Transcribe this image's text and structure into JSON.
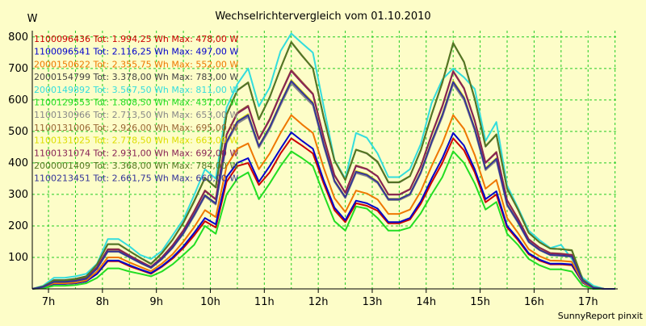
{
  "chart_data": {
    "type": "line",
    "title": "Wechselrichtervergleich vom 01.10.2010",
    "ylabel": "W",
    "xlabel": "",
    "footer": "SunnyReport pinxit",
    "ylim": [
      0,
      820
    ],
    "xlim": [
      6.7,
      17.55
    ],
    "yticks": [
      100,
      200,
      300,
      400,
      500,
      600,
      700,
      800
    ],
    "xticks": [
      {
        "value": 7,
        "label": "7h"
      },
      {
        "value": 8,
        "label": "8h"
      },
      {
        "value": 9,
        "label": "9h"
      },
      {
        "value": 10,
        "label": "10h"
      },
      {
        "value": 11,
        "label": "11h"
      },
      {
        "value": 12,
        "label": "12h"
      },
      {
        "value": 13,
        "label": "13h"
      },
      {
        "value": 14,
        "label": "14h"
      },
      {
        "value": 15,
        "label": "15h"
      },
      {
        "value": 16,
        "label": "16h"
      },
      {
        "value": 17,
        "label": "17h"
      }
    ],
    "grid": true,
    "legend_position": "top-left",
    "x": [
      6.7,
      6.9,
      7.1,
      7.3,
      7.5,
      7.7,
      7.9,
      8.1,
      8.3,
      8.5,
      8.7,
      8.9,
      9.1,
      9.3,
      9.5,
      9.7,
      9.9,
      10.1,
      10.3,
      10.5,
      10.7,
      10.9,
      11.1,
      11.3,
      11.5,
      11.7,
      11.9,
      12.1,
      12.3,
      12.5,
      12.7,
      12.9,
      13.1,
      13.3,
      13.5,
      13.7,
      13.9,
      14.1,
      14.3,
      14.5,
      14.7,
      14.9,
      15.1,
      15.3,
      15.5,
      15.7,
      15.9,
      16.1,
      16.3,
      16.5,
      16.7,
      16.9,
      17.1,
      17.3,
      17.5
    ],
    "series": [
      {
        "name": "1100096436 Tot: 1.994,25 Wh Max: 478,00 W",
        "color": "#cc0000",
        "values": [
          0,
          4,
          16,
          16,
          18,
          24,
          48,
          88,
          88,
          72,
          60,
          48,
          70,
          96,
          130,
          170,
          215,
          195,
          340,
          390,
          400,
          330,
          370,
          430,
          478,
          455,
          430,
          335,
          250,
          212,
          272,
          264,
          248,
          208,
          208,
          220,
          270,
          338,
          400,
          478,
          440,
          370,
          275,
          300,
          195,
          155,
          110,
          90,
          78,
          78,
          75,
          20,
          0,
          0,
          0
        ]
      },
      {
        "name": "1100096541 Tot: 2.116,25 Wh Max: 497,00 W",
        "color": "#0000cc",
        "values": [
          0,
          4,
          16,
          16,
          18,
          24,
          48,
          90,
          90,
          75,
          62,
          50,
          72,
          100,
          135,
          178,
          225,
          205,
          355,
          400,
          415,
          340,
          390,
          445,
          497,
          470,
          445,
          345,
          258,
          218,
          280,
          272,
          255,
          212,
          212,
          225,
          278,
          350,
          415,
          495,
          455,
          380,
          285,
          310,
          200,
          160,
          113,
          93,
          80,
          80,
          78,
          20,
          0,
          0,
          0
        ]
      },
      {
        "name": "2000150622 Tot: 2.355,75 Wh Max: 552,00 W",
        "color": "#ee7700",
        "values": [
          0,
          5,
          18,
          18,
          20,
          27,
          55,
          100,
          100,
          84,
          70,
          56,
          80,
          110,
          150,
          196,
          250,
          228,
          390,
          445,
          462,
          380,
          430,
          495,
          552,
          522,
          495,
          385,
          288,
          244,
          312,
          303,
          284,
          238,
          238,
          252,
          310,
          390,
          462,
          552,
          508,
          425,
          318,
          346,
          225,
          178,
          126,
          104,
          90,
          89,
          86,
          22,
          0,
          0,
          0
        ]
      },
      {
        "name": "2000154799 Tot: 3.378,00 Wh Max: 783,00 W",
        "color": "#444444",
        "values": [
          0,
          8,
          28,
          28,
          32,
          40,
          80,
          142,
          142,
          120,
          99,
          80,
          113,
          156,
          210,
          278,
          352,
          322,
          553,
          630,
          655,
          538,
          608,
          700,
          783,
          740,
          700,
          545,
          408,
          346,
          442,
          430,
          403,
          338,
          338,
          358,
          440,
          553,
          655,
          780,
          720,
          603,
          452,
          490,
          318,
          252,
          178,
          148,
          128,
          126,
          122,
          30,
          5,
          0,
          0
        ]
      },
      {
        "name": "2000149892 Tot: 3.567,50 Wh Max: 811,00 W",
        "color": "#33dddd",
        "values": [
          0,
          10,
          35,
          35,
          40,
          48,
          80,
          158,
          158,
          135,
          108,
          95,
          120,
          170,
          220,
          298,
          380,
          350,
          575,
          650,
          700,
          580,
          640,
          755,
          811,
          780,
          750,
          580,
          410,
          350,
          495,
          480,
          430,
          355,
          355,
          380,
          460,
          590,
          665,
          700,
          672,
          635,
          470,
          530,
          328,
          258,
          185,
          155,
          130,
          140,
          95,
          35,
          10,
          0,
          0
        ]
      },
      {
        "name": "1100129553 Tot: 1.808,50 Wh Max: 437,00 W",
        "color": "#22dd22",
        "values": [
          0,
          2,
          10,
          10,
          12,
          18,
          35,
          65,
          65,
          55,
          48,
          40,
          55,
          78,
          108,
          140,
          200,
          175,
          300,
          350,
          370,
          285,
          335,
          390,
          437,
          415,
          390,
          300,
          215,
          185,
          262,
          255,
          225,
          185,
          185,
          195,
          240,
          300,
          355,
          437,
          400,
          335,
          252,
          276,
          175,
          140,
          95,
          75,
          62,
          62,
          55,
          10,
          0,
          0,
          0
        ]
      },
      {
        "name": "1100130966 Tot: 2.713,50 Wh Max: 653,00 W",
        "color": "#888888",
        "values": [
          0,
          6,
          23,
          23,
          25,
          32,
          65,
          118,
          118,
          100,
          82,
          66,
          94,
          130,
          175,
          232,
          294,
          268,
          462,
          525,
          546,
          448,
          507,
          583,
          653,
          617,
          583,
          454,
          340,
          288,
          368,
          358,
          336,
          282,
          282,
          298,
          367,
          462,
          546,
          650,
          600,
          503,
          377,
          408,
          265,
          210,
          148,
          123,
          107,
          105,
          102,
          25,
          3,
          0,
          0
        ]
      },
      {
        "name": "1100131006 Tot: 2.926,00 Wh Max: 695,00 W",
        "color": "#996633",
        "values": [
          0,
          7,
          24,
          24,
          27,
          34,
          69,
          126,
          126,
          106,
          88,
          70,
          100,
          138,
          186,
          247,
          313,
          285,
          491,
          560,
          582,
          477,
          540,
          620,
          695,
          657,
          620,
          483,
          362,
          306,
          392,
          381,
          358,
          300,
          300,
          317,
          390,
          491,
          582,
          692,
          638,
          535,
          401,
          435,
          282,
          224,
          158,
          131,
          114,
          112,
          108,
          27,
          4,
          0,
          0
        ]
      },
      {
        "name": "1100131025 Tot: 2.778,50 Wh Max: 663,00 W",
        "color": "#dddd00",
        "values": [
          0,
          6,
          23,
          23,
          26,
          33,
          66,
          120,
          120,
          102,
          84,
          67,
          96,
          132,
          178,
          236,
          298,
          272,
          469,
          533,
          555,
          455,
          515,
          592,
          663,
          627,
          592,
          461,
          345,
          292,
          374,
          364,
          341,
          286,
          286,
          302,
          372,
          469,
          555,
          660,
          609,
          510,
          383,
          415,
          269,
          214,
          151,
          125,
          109,
          107,
          103,
          26,
          3,
          0,
          0
        ]
      },
      {
        "name": "1100131074 Tot: 2.931,00 Wh Max: 692,00 W",
        "color": "#882255",
        "values": [
          0,
          7,
          24,
          24,
          27,
          34,
          69,
          125,
          125,
          106,
          87,
          70,
          100,
          138,
          186,
          246,
          311,
          284,
          489,
          557,
          579,
          475,
          537,
          618,
          692,
          654,
          618,
          481,
          360,
          305,
          390,
          380,
          357,
          299,
          299,
          316,
          389,
          489,
          579,
          690,
          636,
          533,
          400,
          433,
          281,
          223,
          157,
          131,
          113,
          111,
          108,
          27,
          4,
          0,
          0
        ]
      },
      {
        "name": "2000001409 Tot: 3.368,00 Wh Max: 784,00 W",
        "color": "#557722",
        "values": [
          0,
          8,
          27,
          27,
          31,
          39,
          78,
          142,
          142,
          120,
          99,
          79,
          113,
          156,
          210,
          279,
          352,
          322,
          554,
          631,
          656,
          538,
          609,
          700,
          784,
          741,
          700,
          545,
          408,
          346,
          442,
          431,
          404,
          339,
          339,
          358,
          441,
          554,
          656,
          781,
          721,
          604,
          453,
          491,
          318,
          253,
          178,
          148,
          128,
          126,
          123,
          30,
          5,
          0,
          0
        ]
      },
      {
        "name": "1100213451 Tot: 2.661,75 Wh Max: 660,00 W",
        "color": "#333399",
        "values": [
          0,
          6,
          22,
          22,
          25,
          32,
          64,
          119,
          119,
          101,
          83,
          67,
          95,
          131,
          177,
          235,
          297,
          271,
          467,
          531,
          552,
          453,
          513,
          589,
          660,
          624,
          589,
          459,
          343,
          291,
          372,
          362,
          339,
          285,
          285,
          301,
          370,
          467,
          552,
          657,
          606,
          508,
          381,
          413,
          268,
          213,
          150,
          124,
          108,
          106,
          103,
          25,
          3,
          0,
          0
        ]
      }
    ]
  }
}
